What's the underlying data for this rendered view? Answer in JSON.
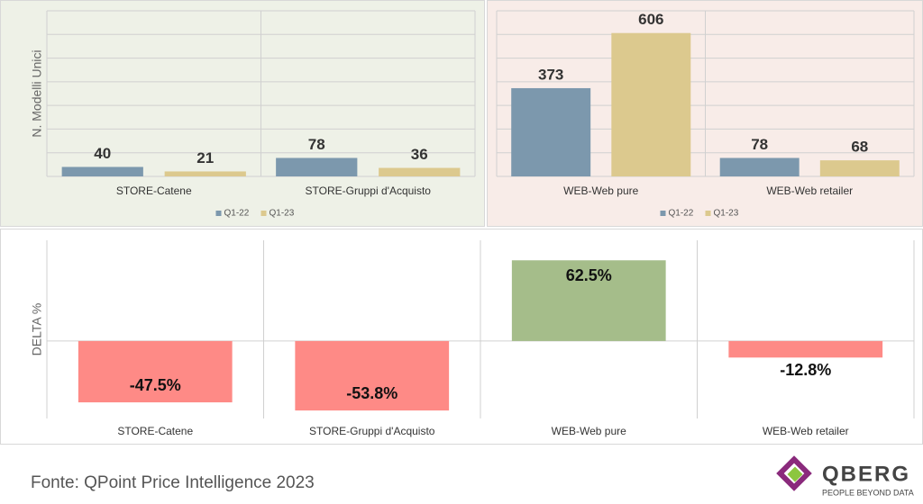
{
  "chart_data": [
    {
      "type": "bar",
      "y_label": "N. Modelli Unici",
      "categories": [
        "STORE-Catene",
        "STORE-Gruppi d'Acquisto"
      ],
      "series": [
        {
          "name": "Q1-22",
          "color": "#7c98ad",
          "values": [
            40,
            78
          ]
        },
        {
          "name": "Q1-23",
          "color": "#dcc98e",
          "values": [
            21,
            36
          ]
        }
      ],
      "ylim": [
        0,
        700
      ],
      "yticks": [
        0,
        100,
        200,
        300,
        400,
        500,
        600,
        700
      ],
      "grid": true,
      "show_tick_labels": false,
      "legend": "bottom",
      "background": "#eef1e7"
    },
    {
      "type": "bar",
      "categories": [
        "WEB-Web pure",
        "WEB-Web retailer"
      ],
      "series": [
        {
          "name": "Q1-22",
          "color": "#7c98ad",
          "values": [
            373,
            78
          ]
        },
        {
          "name": "Q1-23",
          "color": "#dcc98e",
          "values": [
            606,
            68
          ]
        }
      ],
      "ylim": [
        0,
        700
      ],
      "yticks": [
        0,
        100,
        200,
        300,
        400,
        500,
        600,
        700
      ],
      "grid": true,
      "show_tick_labels": false,
      "legend": "bottom",
      "background": "#f8ece8"
    },
    {
      "type": "bar",
      "y_label": "DELTA %",
      "categories": [
        "STORE-Catene",
        "STORE-Gruppi d'Acquisto",
        "WEB-Web pure",
        "WEB-Web retailer"
      ],
      "values": [
        -47.5,
        -53.8,
        62.5,
        -12.8
      ],
      "value_labels": [
        "-47.5%",
        "-53.8%",
        "62.5%",
        "-12.8%"
      ],
      "color_positive": "#a5bd8a",
      "color_negative": "#fe8a86",
      "ylim": [
        -60,
        78
      ],
      "yticks": [
        0
      ],
      "grid": true,
      "show_tick_labels": false,
      "background": "#ffffff"
    }
  ],
  "source": "Fonte: QPoint Price Intelligence 2023",
  "logo": {
    "name": "QBERG",
    "tagline": "PEOPLE BEYOND DATA"
  }
}
